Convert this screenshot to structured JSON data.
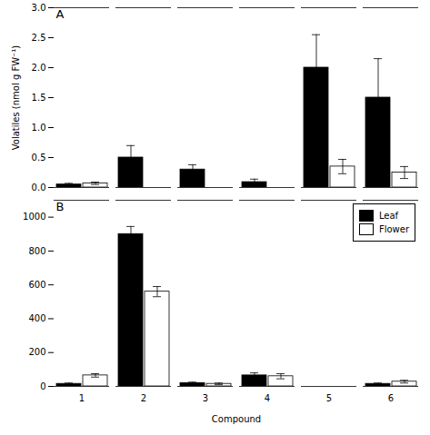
{
  "chart_data": [
    {
      "type": "bar",
      "title": "A",
      "categories": [
        "1",
        "2",
        "3",
        "4",
        "5",
        "6"
      ],
      "series": [
        {
          "name": "Leaf",
          "color": "#000000",
          "values": [
            0.05,
            0.5,
            0.3,
            0.09,
            2.0,
            1.5
          ],
          "errors": [
            0.02,
            0.2,
            0.08,
            0.05,
            0.55,
            0.65
          ]
        },
        {
          "name": "Flower",
          "color": "#ffffff",
          "values": [
            0.07,
            0.0,
            0.0,
            0.0,
            0.35,
            0.25
          ],
          "errors": [
            0.02,
            0.0,
            0.0,
            0.0,
            0.12,
            0.1
          ]
        }
      ],
      "ylabel": "Volatiles (nmol g FW⁻¹)",
      "ylim": [
        0,
        3
      ],
      "yticks": [
        {
          "value": 0,
          "label": "0.0"
        },
        0.5,
        {
          "value": 1,
          "label": "1.0"
        },
        1.5,
        {
          "value": 2,
          "label": "2.0"
        },
        2.5,
        {
          "value": 3,
          "label": "3.0"
        }
      ],
      "grid": false,
      "tick_labels": "y"
    },
    {
      "type": "bar",
      "title": "B",
      "categories": [
        "1",
        "2",
        "3",
        "4",
        "5",
        "6"
      ],
      "series": [
        {
          "name": "Leaf",
          "color": "#000000",
          "values": [
            15,
            900,
            20,
            65,
            0,
            15
          ],
          "errors": [
            5,
            45,
            5,
            15,
            0,
            5
          ]
        },
        {
          "name": "Flower",
          "color": "#ffffff",
          "values": [
            65,
            560,
            15,
            60,
            0,
            28
          ],
          "errors": [
            10,
            30,
            5,
            15,
            0,
            8
          ]
        }
      ],
      "xlabel": "Compound",
      "ylim": [
        0,
        1100
      ],
      "yticks": [
        0,
        200,
        400,
        600,
        800,
        1000
      ],
      "grid": false,
      "legend": "upper right"
    }
  ]
}
